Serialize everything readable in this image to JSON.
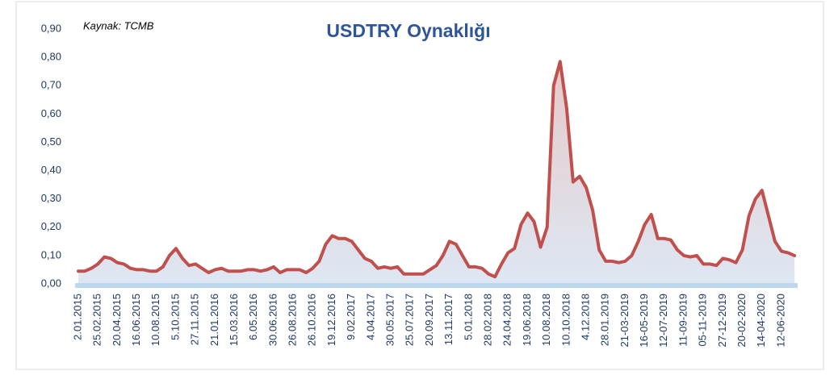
{
  "chart_data": {
    "type": "line",
    "title": "USDTRY Oynaklığı",
    "annotation": "Kaynak: TCMB",
    "categories": [
      "2.01.2015",
      null,
      null,
      "25.02.2015",
      null,
      null,
      "20.04.2015",
      null,
      null,
      "16.06.2015",
      null,
      null,
      "10.08.2015",
      null,
      null,
      "5.10.2015",
      null,
      null,
      "27.11.2015",
      null,
      null,
      "21.01.2016",
      null,
      null,
      "15.03.2016",
      null,
      null,
      "6.05.2016",
      null,
      null,
      "30.06.2016",
      null,
      null,
      "26.08.2016",
      null,
      null,
      "26.10.2016",
      null,
      null,
      "19.12.2016",
      null,
      null,
      "9.02.2017",
      null,
      null,
      "4.04.2017",
      null,
      null,
      "30.05.2017",
      null,
      null,
      "25.07.2017",
      null,
      null,
      "20.09.2017",
      null,
      null,
      "13.11.2017",
      null,
      null,
      "5.01.2018",
      null,
      null,
      "28.02.2018",
      null,
      null,
      "24.04.2018",
      null,
      null,
      "19.06.2018",
      null,
      null,
      "10.08.2018",
      null,
      null,
      "10.10.2018",
      null,
      null,
      "4.12.2018",
      null,
      null,
      "28.01.2019",
      null,
      null,
      "21-03-2019",
      null,
      null,
      "16-05-2019",
      null,
      null,
      "12-07-2019",
      null,
      null,
      "11-09-2019",
      null,
      null,
      "05-11-2019",
      null,
      null,
      "27-12-2019",
      null,
      null,
      "20-02-2020",
      null,
      null,
      "14-04-2020",
      null,
      null,
      "12-06-2020",
      null,
      null
    ],
    "series": [
      {
        "color": "#c0504d",
        "values": [
          0.045,
          0.045,
          0.055,
          0.07,
          0.095,
          0.09,
          0.075,
          0.07,
          0.055,
          0.05,
          0.05,
          0.045,
          0.045,
          0.06,
          0.1,
          0.125,
          0.09,
          0.065,
          0.07,
          0.055,
          0.04,
          0.05,
          0.055,
          0.045,
          0.045,
          0.045,
          0.05,
          0.05,
          0.045,
          0.05,
          0.06,
          0.04,
          0.05,
          0.05,
          0.05,
          0.04,
          0.055,
          0.08,
          0.14,
          0.17,
          0.16,
          0.16,
          0.15,
          0.12,
          0.09,
          0.08,
          0.055,
          0.06,
          0.055,
          0.06,
          0.035,
          0.035,
          0.035,
          0.035,
          0.05,
          0.065,
          0.1,
          0.15,
          0.14,
          0.1,
          0.06,
          0.06,
          0.055,
          0.035,
          0.025,
          0.07,
          0.11,
          0.125,
          0.21,
          0.25,
          0.22,
          0.13,
          0.2,
          0.7,
          0.785,
          0.62,
          0.36,
          0.38,
          0.34,
          0.26,
          0.12,
          0.08,
          0.08,
          0.075,
          0.08,
          0.1,
          0.15,
          0.21,
          0.245,
          0.16,
          0.16,
          0.155,
          0.12,
          0.1,
          0.095,
          0.1,
          0.07,
          0.07,
          0.065,
          0.09,
          0.085,
          0.075,
          0.12,
          0.24,
          0.3,
          0.33,
          0.24,
          0.15,
          0.115,
          0.11,
          0.1
        ]
      }
    ],
    "ylim": [
      0,
      0.9
    ],
    "yticks": [
      {
        "value": 0,
        "label": "0,00"
      },
      {
        "value": 0.1,
        "label": "0,10"
      },
      {
        "value": 0.2,
        "label": "0,20"
      },
      {
        "value": 0.3,
        "label": "0,30"
      },
      {
        "value": 0.4,
        "label": "0,40"
      },
      {
        "value": 0.5,
        "label": "0,50"
      },
      {
        "value": 0.6,
        "label": "0,60"
      },
      {
        "value": 0.7,
        "label": "0,70"
      },
      {
        "value": 0.8,
        "label": "0,80"
      },
      {
        "value": 0.9,
        "label": "0,90"
      }
    ]
  }
}
